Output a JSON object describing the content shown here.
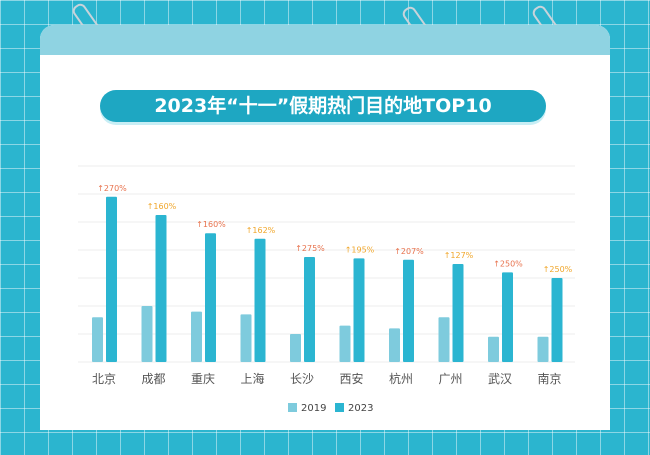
{
  "title": "2023年“十一”假期热门目的地TOP10",
  "chart_data": {
    "type": "bar",
    "title": "2023年“十一”假期热门目的地TOP10",
    "categories": [
      "北京",
      "成都",
      "重庆",
      "上海",
      "长沙",
      "西安",
      "杭州",
      "广州",
      "武汉",
      "南京"
    ],
    "series": [
      {
        "name": "2019",
        "color": "#7ecbdd",
        "values": [
          1.6,
          2.0,
          1.8,
          1.7,
          1.0,
          1.3,
          1.2,
          1.6,
          0.9,
          0.9
        ]
      },
      {
        "name": "2023",
        "color": "#2bb5d1",
        "values": [
          5.9,
          5.25,
          4.6,
          4.4,
          3.75,
          3.7,
          3.65,
          3.5,
          3.2,
          3.0
        ]
      }
    ],
    "data_labels": [
      "↑270%",
      "↑160%",
      "↑160%",
      "↑162%",
      "↑275%",
      "↑195%",
      "↑207%",
      "↑127%",
      "↑250%",
      "↑250%"
    ],
    "data_label_colors": [
      "#e8734e",
      "#f0a62a",
      "#e8734e",
      "#f0a62a",
      "#e8734e",
      "#f0a62a",
      "#e8734e",
      "#f0a62a",
      "#e8734e",
      "#f0a62a"
    ],
    "ylim": [
      0,
      7
    ],
    "grid": true,
    "legend": "bottom"
  }
}
